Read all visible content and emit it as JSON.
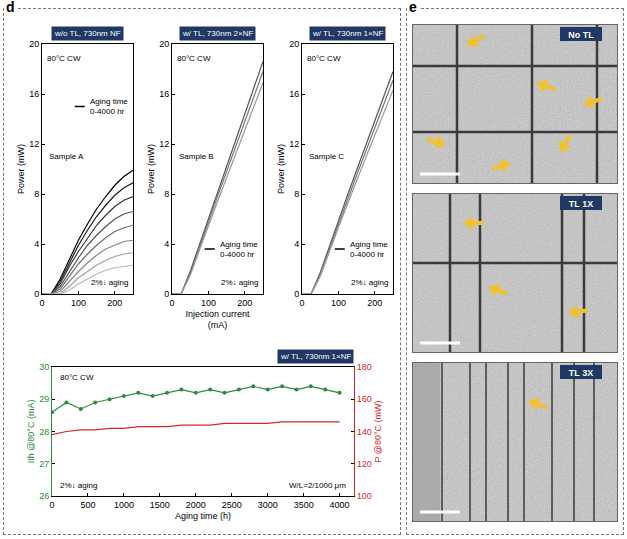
{
  "panels": [
    {
      "label": "d"
    },
    {
      "label": "e",
      "images": [
        {
          "title": "No TL"
        },
        {
          "title": "TL 1X"
        },
        {
          "title": "TL 3X"
        }
      ]
    }
  ],
  "chart_data": [
    {
      "type": "line",
      "title": "w/o TL, 730nm NF",
      "y_label": "Power (mW)",
      "annotations": [
        "80°C CW",
        "Sample A",
        "Aging time\n0-4000 hr",
        "2%↓ aging"
      ],
      "x": [
        0,
        25,
        50,
        75,
        100,
        125,
        150,
        175,
        200,
        225,
        250
      ],
      "series": [
        {
          "color": "#000000",
          "values": [
            0,
            0,
            1.2,
            2.8,
            4.3,
            5.6,
            6.8,
            7.8,
            8.7,
            9.4,
            9.9
          ]
        },
        {
          "color": "#1c1c1c",
          "values": [
            0,
            0,
            1.0,
            2.5,
            3.9,
            5.1,
            6.2,
            7.1,
            7.9,
            8.5,
            8.9
          ]
        },
        {
          "color": "#383838",
          "values": [
            0,
            0,
            0.8,
            2.2,
            3.4,
            4.5,
            5.5,
            6.3,
            7.0,
            7.5,
            7.8
          ]
        },
        {
          "color": "#545454",
          "values": [
            0,
            0,
            0.6,
            1.8,
            2.9,
            3.9,
            4.7,
            5.4,
            6.0,
            6.4,
            6.6
          ]
        },
        {
          "color": "#6e6e6e",
          "values": [
            0,
            0,
            0.4,
            1.4,
            2.4,
            3.2,
            3.9,
            4.5,
            5.0,
            5.3,
            5.5
          ]
        },
        {
          "color": "#888888",
          "values": [
            0,
            0,
            0.2,
            1.0,
            1.8,
            2.5,
            3.1,
            3.6,
            3.9,
            4.2,
            4.3
          ]
        },
        {
          "color": "#a0a0a0",
          "values": [
            0,
            0,
            0,
            0.6,
            1.3,
            1.8,
            2.3,
            2.7,
            3.0,
            3.2,
            3.3
          ]
        },
        {
          "color": "#b8b8b8",
          "values": [
            0,
            0,
            0,
            0.3,
            0.8,
            1.2,
            1.6,
            1.9,
            2.1,
            2.2,
            2.3
          ]
        }
      ],
      "xlim": [
        0,
        250
      ],
      "xticks": [
        0,
        100,
        200
      ],
      "ylim": [
        0,
        20
      ],
      "yticks": [
        0,
        4,
        8,
        12,
        16,
        20
      ],
      "grid": false
    },
    {
      "type": "line",
      "title": "w/ TL, 730nm 2×NF",
      "x_label": "Injection current (mA)",
      "y_label": "Power (mW)",
      "annotations": [
        "80°C CW",
        "Sample B",
        "Aging time\n0-4000 hr",
        "2%↓ aging"
      ],
      "x": [
        0,
        25,
        50,
        75,
        100,
        125,
        150,
        175,
        200,
        225,
        250
      ],
      "series": [
        {
          "color": "#555555",
          "values": [
            0,
            0,
            1.8,
            3.9,
            6.0,
            8.1,
            10.2,
            12.3,
            14.4,
            16.5,
            18.6
          ]
        },
        {
          "color": "#777777",
          "values": [
            0,
            0,
            1.6,
            3.7,
            5.7,
            7.8,
            9.8,
            11.8,
            13.8,
            15.8,
            17.8
          ]
        },
        {
          "color": "#999999",
          "values": [
            0,
            0,
            1.5,
            3.5,
            5.4,
            7.4,
            9.3,
            11.2,
            13.1,
            15.0,
            16.9
          ]
        }
      ],
      "xlim": [
        0,
        250
      ],
      "xticks": [
        0,
        100,
        200
      ],
      "ylim": [
        0,
        20
      ],
      "yticks": [
        0,
        4,
        8,
        12,
        16,
        20
      ],
      "grid": false
    },
    {
      "type": "line",
      "title": "w/ TL, 730nm 1×NF",
      "y_label": "Power (mW)",
      "annotations": [
        "80°C CW",
        "Sample C",
        "Aging time\n0-4000 hr",
        "2%↓ aging"
      ],
      "x": [
        0,
        25,
        50,
        75,
        100,
        125,
        150,
        175,
        200,
        225,
        250
      ],
      "series": [
        {
          "color": "#555555",
          "values": [
            0,
            0,
            1.7,
            3.8,
            5.8,
            7.9,
            9.9,
            11.9,
            13.9,
            15.9,
            17.8
          ]
        },
        {
          "color": "#777777",
          "values": [
            0,
            0,
            1.6,
            3.6,
            5.6,
            7.6,
            9.5,
            11.4,
            13.3,
            15.2,
            17.1
          ]
        },
        {
          "color": "#999999",
          "values": [
            0,
            0,
            1.4,
            3.4,
            5.3,
            7.2,
            9.1,
            10.9,
            12.7,
            14.5,
            16.3
          ]
        }
      ],
      "xlim": [
        0,
        250
      ],
      "xticks": [
        0,
        100,
        200
      ],
      "ylim": [
        0,
        20
      ],
      "yticks": [
        0,
        4,
        8,
        12,
        16,
        20
      ],
      "grid": false
    },
    {
      "type": "line",
      "title": "w/ TL, 730nm 1×NF",
      "x_label": "Aging time (h)",
      "y_label": "Ith @80°C (mA)",
      "y2_label": "P @80°C (mW)",
      "annotations": [
        "80°C CW",
        "2%↓ aging",
        "W/L=2/1000 μm"
      ],
      "x": [
        0,
        200,
        400,
        600,
        800,
        1000,
        1200,
        1400,
        1600,
        1800,
        2000,
        2200,
        2400,
        2600,
        2800,
        3000,
        3200,
        3400,
        3600,
        3800,
        4000
      ],
      "series": [
        {
          "color": "#2e8b3e",
          "marker": "circle",
          "line_style": "solid",
          "values": [
            28.6,
            28.9,
            28.7,
            28.9,
            29.0,
            29.1,
            29.2,
            29.1,
            29.2,
            29.3,
            29.2,
            29.3,
            29.2,
            29.3,
            29.4,
            29.3,
            29.4,
            29.3,
            29.4,
            29.3,
            29.2
          ]
        },
        {
          "color": "#d62728",
          "line_style": "solid",
          "axis": "y2",
          "values": [
            138,
            140,
            141,
            141,
            142,
            142,
            143,
            143,
            143,
            144,
            144,
            144,
            145,
            145,
            145,
            145,
            146,
            146,
            146,
            146,
            146
          ]
        }
      ],
      "xlim": [
        0,
        4200
      ],
      "xticks": [
        0,
        500,
        1000,
        1500,
        2000,
        2500,
        3000,
        3500,
        4000
      ],
      "ylim": [
        26,
        30
      ],
      "yticks": [
        26,
        27,
        28,
        29,
        30
      ],
      "y2lim": [
        100,
        180
      ],
      "y2ticks": [
        100,
        120,
        140,
        160,
        180
      ],
      "grid": false
    }
  ]
}
